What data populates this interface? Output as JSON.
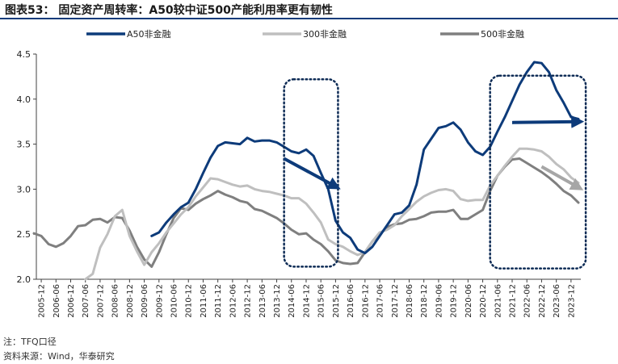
{
  "figure": {
    "title": "图表53： 固定资产周转率：A50较中证500产能利用率更有韧性",
    "note": "注：TFQ口径",
    "source": "资料来源：Wind，华泰研究"
  },
  "colors": {
    "title_rule": "#0d3b7a",
    "a50": "#0d3b7a",
    "s300": "#bfbfbf",
    "s500": "#7f7f7f",
    "highlight_box": "#0d2b55",
    "arrow_blue": "#0d3b7a",
    "arrow_grey": "#a6a6a6"
  },
  "chart_data": {
    "type": "line",
    "x": [
      "2005-12",
      "2006-06",
      "2006-12",
      "2007-06",
      "2007-12",
      "2008-06",
      "2008-12",
      "2009-06",
      "2009-12",
      "2010-06",
      "2010-12",
      "2011-06",
      "2011-12",
      "2012-06",
      "2012-12",
      "2013-06",
      "2013-12",
      "2014-06",
      "2014-12",
      "2015-06",
      "2015-12",
      "2016-06",
      "2016-12",
      "2017-06",
      "2017-12",
      "2018-06",
      "2018-12",
      "2019-06",
      "2019-12",
      "2020-06",
      "2020-12",
      "2021-06",
      "2021-12",
      "2022-06",
      "2022-12",
      "2023-06",
      "2023-12"
    ],
    "ylim": [
      2.0,
      4.5
    ],
    "yticks": [
      "2.0",
      "2.5",
      "3.0",
      "3.5",
      "4.0",
      "4.5"
    ],
    "series": [
      {
        "name": "A50非金融",
        "points": [
          [
            "2009-09",
            2.48
          ],
          [
            "2009-12",
            2.52
          ],
          [
            "2010-03",
            2.63
          ],
          [
            "2010-06",
            2.72
          ],
          [
            "2010-09",
            2.8
          ],
          [
            "2010-12",
            2.85
          ],
          [
            "2011-03",
            3.0
          ],
          [
            "2011-06",
            3.18
          ],
          [
            "2011-09",
            3.35
          ],
          [
            "2011-12",
            3.48
          ],
          [
            "2012-03",
            3.52
          ],
          [
            "2012-06",
            3.51
          ],
          [
            "2012-09",
            3.5
          ],
          [
            "2012-12",
            3.57
          ],
          [
            "2013-03",
            3.53
          ],
          [
            "2013-06",
            3.54
          ],
          [
            "2013-09",
            3.54
          ],
          [
            "2013-12",
            3.52
          ],
          [
            "2014-03",
            3.47
          ],
          [
            "2014-06",
            3.42
          ],
          [
            "2014-09",
            3.4
          ],
          [
            "2014-12",
            3.44
          ],
          [
            "2015-03",
            3.37
          ],
          [
            "2015-06",
            3.18
          ],
          [
            "2015-09",
            3.0
          ],
          [
            "2015-12",
            2.65
          ],
          [
            "2016-03",
            2.52
          ],
          [
            "2016-06",
            2.46
          ],
          [
            "2016-09",
            2.33
          ],
          [
            "2016-12",
            2.29
          ],
          [
            "2017-03",
            2.36
          ],
          [
            "2017-06",
            2.48
          ],
          [
            "2017-09",
            2.6
          ],
          [
            "2017-12",
            2.72
          ],
          [
            "2018-03",
            2.74
          ],
          [
            "2018-06",
            2.82
          ],
          [
            "2018-09",
            3.05
          ],
          [
            "2018-12",
            3.44
          ],
          [
            "2019-03",
            3.56
          ],
          [
            "2019-06",
            3.68
          ],
          [
            "2019-09",
            3.7
          ],
          [
            "2019-12",
            3.74
          ],
          [
            "2020-03",
            3.66
          ],
          [
            "2020-06",
            3.52
          ],
          [
            "2020-09",
            3.42
          ],
          [
            "2020-12",
            3.38
          ],
          [
            "2021-03",
            3.47
          ],
          [
            "2021-06",
            3.64
          ],
          [
            "2021-09",
            3.8
          ],
          [
            "2021-12",
            3.98
          ],
          [
            "2022-03",
            4.16
          ],
          [
            "2022-06",
            4.3
          ],
          [
            "2022-09",
            4.41
          ],
          [
            "2022-12",
            4.4
          ],
          [
            "2023-03",
            4.3
          ],
          [
            "2023-06",
            4.1
          ],
          [
            "2023-09",
            3.96
          ],
          [
            "2023-12",
            3.8
          ],
          [
            "2024-03",
            3.78
          ]
        ]
      },
      {
        "name": "300非金融",
        "points": [
          [
            "2007-06",
            2.0
          ],
          [
            "2007-09",
            2.06
          ],
          [
            "2007-12",
            2.35
          ],
          [
            "2008-03",
            2.5
          ],
          [
            "2008-06",
            2.7
          ],
          [
            "2008-09",
            2.77
          ],
          [
            "2008-12",
            2.48
          ],
          [
            "2009-03",
            2.31
          ],
          [
            "2009-06",
            2.16
          ],
          [
            "2009-09",
            2.3
          ],
          [
            "2009-12",
            2.4
          ],
          [
            "2010-03",
            2.52
          ],
          [
            "2010-06",
            2.62
          ],
          [
            "2010-09",
            2.72
          ],
          [
            "2010-12",
            2.8
          ],
          [
            "2011-03",
            2.92
          ],
          [
            "2011-06",
            3.02
          ],
          [
            "2011-09",
            3.12
          ],
          [
            "2011-12",
            3.11
          ],
          [
            "2012-03",
            3.08
          ],
          [
            "2012-06",
            3.05
          ],
          [
            "2012-09",
            3.03
          ],
          [
            "2012-12",
            3.04
          ],
          [
            "2013-03",
            3.0
          ],
          [
            "2013-06",
            2.98
          ],
          [
            "2013-09",
            2.97
          ],
          [
            "2013-12",
            2.95
          ],
          [
            "2014-03",
            2.93
          ],
          [
            "2014-06",
            2.9
          ],
          [
            "2014-09",
            2.9
          ],
          [
            "2014-12",
            2.84
          ],
          [
            "2015-03",
            2.74
          ],
          [
            "2015-06",
            2.63
          ],
          [
            "2015-09",
            2.44
          ],
          [
            "2015-12",
            2.39
          ],
          [
            "2016-03",
            2.36
          ],
          [
            "2016-06",
            2.31
          ],
          [
            "2016-09",
            2.27
          ],
          [
            "2016-12",
            2.3
          ],
          [
            "2017-03",
            2.42
          ],
          [
            "2017-06",
            2.52
          ],
          [
            "2017-09",
            2.55
          ],
          [
            "2017-12",
            2.6
          ],
          [
            "2018-03",
            2.7
          ],
          [
            "2018-06",
            2.78
          ],
          [
            "2018-09",
            2.86
          ],
          [
            "2018-12",
            2.92
          ],
          [
            "2019-03",
            2.96
          ],
          [
            "2019-06",
            2.99
          ],
          [
            "2019-09",
            3.0
          ],
          [
            "2019-12",
            2.98
          ],
          [
            "2020-03",
            2.89
          ],
          [
            "2020-06",
            2.87
          ],
          [
            "2020-09",
            2.88
          ],
          [
            "2020-12",
            2.88
          ],
          [
            "2021-03",
            3.04
          ],
          [
            "2021-06",
            3.15
          ],
          [
            "2021-09",
            3.26
          ],
          [
            "2021-12",
            3.36
          ],
          [
            "2022-03",
            3.45
          ],
          [
            "2022-06",
            3.45
          ],
          [
            "2022-09",
            3.44
          ],
          [
            "2022-12",
            3.42
          ],
          [
            "2023-03",
            3.36
          ],
          [
            "2023-06",
            3.28
          ],
          [
            "2023-09",
            3.22
          ],
          [
            "2023-12",
            3.13
          ],
          [
            "2024-03",
            3.07
          ]
        ]
      },
      {
        "name": "500非金融",
        "points": [
          [
            "2005-09",
            2.51
          ],
          [
            "2005-12",
            2.48
          ],
          [
            "2006-03",
            2.39
          ],
          [
            "2006-06",
            2.36
          ],
          [
            "2006-09",
            2.4
          ],
          [
            "2006-12",
            2.48
          ],
          [
            "2007-03",
            2.59
          ],
          [
            "2007-06",
            2.6
          ],
          [
            "2007-09",
            2.66
          ],
          [
            "2007-12",
            2.67
          ],
          [
            "2008-03",
            2.63
          ],
          [
            "2008-06",
            2.69
          ],
          [
            "2008-09",
            2.68
          ],
          [
            "2008-12",
            2.54
          ],
          [
            "2009-03",
            2.36
          ],
          [
            "2009-06",
            2.22
          ],
          [
            "2009-09",
            2.14
          ],
          [
            "2009-12",
            2.3
          ],
          [
            "2010-03",
            2.5
          ],
          [
            "2010-06",
            2.68
          ],
          [
            "2010-09",
            2.79
          ],
          [
            "2010-12",
            2.77
          ],
          [
            "2011-03",
            2.84
          ],
          [
            "2011-06",
            2.89
          ],
          [
            "2011-09",
            2.93
          ],
          [
            "2011-12",
            2.98
          ],
          [
            "2012-03",
            2.94
          ],
          [
            "2012-06",
            2.91
          ],
          [
            "2012-09",
            2.87
          ],
          [
            "2012-12",
            2.85
          ],
          [
            "2013-03",
            2.78
          ],
          [
            "2013-06",
            2.76
          ],
          [
            "2013-09",
            2.72
          ],
          [
            "2013-12",
            2.68
          ],
          [
            "2014-03",
            2.62
          ],
          [
            "2014-06",
            2.55
          ],
          [
            "2014-09",
            2.5
          ],
          [
            "2014-12",
            2.51
          ],
          [
            "2015-03",
            2.44
          ],
          [
            "2015-06",
            2.39
          ],
          [
            "2015-09",
            2.31
          ],
          [
            "2015-12",
            2.21
          ],
          [
            "2016-03",
            2.18
          ],
          [
            "2016-06",
            2.17
          ],
          [
            "2016-09",
            2.18
          ],
          [
            "2016-12",
            2.3
          ],
          [
            "2017-03",
            2.42
          ],
          [
            "2017-06",
            2.5
          ],
          [
            "2017-09",
            2.58
          ],
          [
            "2017-12",
            2.61
          ],
          [
            "2018-03",
            2.62
          ],
          [
            "2018-06",
            2.66
          ],
          [
            "2018-09",
            2.67
          ],
          [
            "2018-12",
            2.7
          ],
          [
            "2019-03",
            2.74
          ],
          [
            "2019-06",
            2.75
          ],
          [
            "2019-09",
            2.75
          ],
          [
            "2019-12",
            2.77
          ],
          [
            "2020-03",
            2.67
          ],
          [
            "2020-06",
            2.67
          ],
          [
            "2020-09",
            2.72
          ],
          [
            "2020-12",
            2.77
          ],
          [
            "2021-03",
            2.98
          ],
          [
            "2021-06",
            3.15
          ],
          [
            "2021-09",
            3.25
          ],
          [
            "2021-12",
            3.33
          ],
          [
            "2022-03",
            3.34
          ],
          [
            "2022-06",
            3.29
          ],
          [
            "2022-09",
            3.24
          ],
          [
            "2022-12",
            3.19
          ],
          [
            "2023-03",
            3.13
          ],
          [
            "2023-06",
            3.06
          ],
          [
            "2023-09",
            2.98
          ],
          [
            "2023-12",
            2.93
          ],
          [
            "2024-03",
            2.85
          ]
        ]
      }
    ],
    "legend_position": "top",
    "grid": false,
    "annotations": [
      {
        "type": "dotted-box",
        "x_from": "2014-03",
        "x_to": "2016-01",
        "y_from": 2.14,
        "y_to": 4.22
      },
      {
        "type": "dotted-box",
        "x_from": "2021-03",
        "x_to": "2024-06",
        "y_from": 2.12,
        "y_to": 4.26
      },
      {
        "type": "arrow",
        "color": "blue",
        "from": [
          "2014-03",
          3.34
        ],
        "to": [
          "2015-12",
          3.03
        ]
      },
      {
        "type": "arrow",
        "color": "blue",
        "from": [
          "2021-12",
          3.74
        ],
        "to": [
          "2024-03",
          3.75
        ]
      },
      {
        "type": "arrow",
        "color": "grey",
        "from": [
          "2022-12",
          3.25
        ],
        "to": [
          "2024-03",
          3.02
        ]
      }
    ]
  }
}
